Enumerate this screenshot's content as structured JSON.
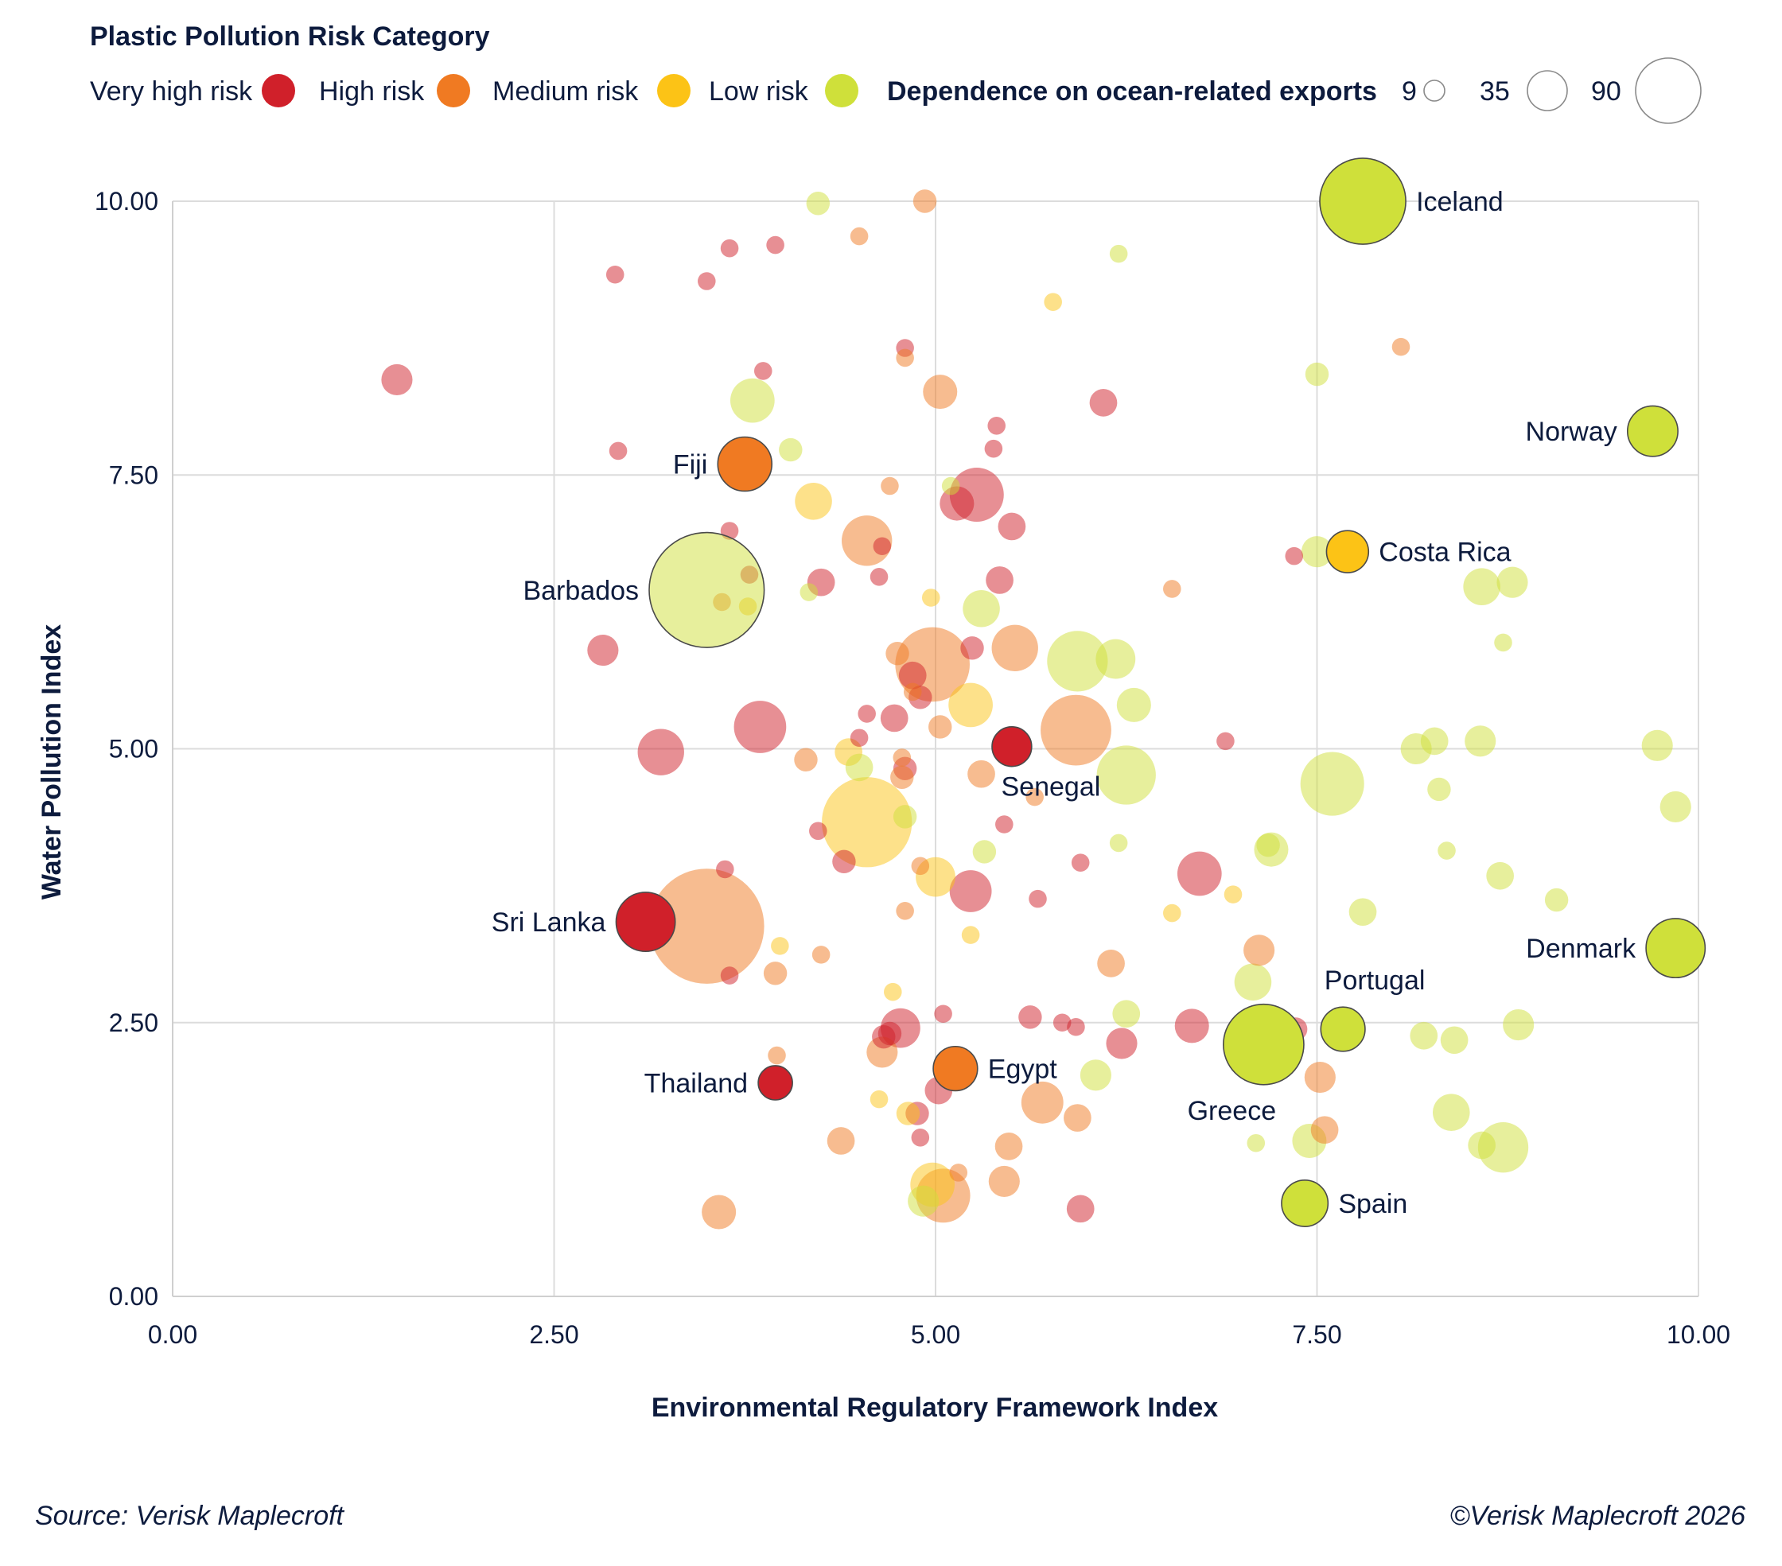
{
  "chart_data": {
    "type": "scatter",
    "legend": {
      "title": "Plastic Pollution Risk Category",
      "categories": [
        {
          "key": "very_high",
          "label": "Very high risk",
          "color": "#d0202a"
        },
        {
          "key": "high",
          "label": "High risk",
          "color": "#f07a22"
        },
        {
          "key": "medium",
          "label": "Medium risk",
          "color": "#fcc316"
        },
        {
          "key": "low",
          "label": "Low risk",
          "color": "#cfe03a"
        }
      ],
      "size_title": "Dependence on ocean-related exports",
      "size_values": [
        9,
        35,
        90
      ],
      "size_labels": [
        "9",
        "35",
        "90"
      ],
      "placement": "top"
    },
    "xlabel": "Environmental Regulatory Framework Index",
    "ylabel": "Water Pollution Index",
    "xlim": [
      0,
      10
    ],
    "ylim": [
      0,
      10
    ],
    "xticks": [
      "0.00",
      "2.50",
      "5.00",
      "7.50",
      "10.00"
    ],
    "yticks": [
      "0.00",
      "2.50",
      "5.00",
      "7.50",
      "10.00"
    ],
    "grid": true,
    "highlighted": [
      {
        "label": "Iceland",
        "x": 7.8,
        "y": 10.0,
        "size": 38,
        "category": "low",
        "label_pos": "right"
      },
      {
        "label": "Norway",
        "x": 9.7,
        "y": 7.9,
        "size": 12,
        "category": "low",
        "label_pos": "left"
      },
      {
        "label": "Costa Rica",
        "x": 7.7,
        "y": 6.8,
        "size": 8,
        "category": "medium",
        "label_pos": "right"
      },
      {
        "label": "Fiji",
        "x": 3.75,
        "y": 7.6,
        "size": 14,
        "category": "high",
        "label_pos": "left"
      },
      {
        "label": "Barbados",
        "x": 3.5,
        "y": 6.45,
        "size": 70,
        "category": "low",
        "label_pos": "left"
      },
      {
        "label": "Senegal",
        "x": 5.5,
        "y": 5.02,
        "size": 7,
        "category": "very_high",
        "label_pos": "below"
      },
      {
        "label": "Sri Lanka",
        "x": 3.1,
        "y": 3.42,
        "size": 17,
        "category": "very_high",
        "label_pos": "left"
      },
      {
        "label": "Thailand",
        "x": 3.95,
        "y": 1.95,
        "size": 5,
        "category": "very_high",
        "label_pos": "left"
      },
      {
        "label": "Egypt",
        "x": 5.13,
        "y": 2.08,
        "size": 9,
        "category": "high",
        "label_pos": "right"
      },
      {
        "label": "Denmark",
        "x": 9.85,
        "y": 3.18,
        "size": 17,
        "category": "low",
        "label_pos": "left"
      },
      {
        "label": "Portugal",
        "x": 7.67,
        "y": 2.44,
        "size": 9,
        "category": "low",
        "label_pos": "above"
      },
      {
        "label": "Greece",
        "x": 7.15,
        "y": 2.3,
        "size": 33,
        "category": "low",
        "label_pos": "below"
      },
      {
        "label": "Spain",
        "x": 7.42,
        "y": 0.85,
        "size": 10,
        "category": "low",
        "label_pos": "right"
      }
    ],
    "series": [
      {
        "name": "Very high risk",
        "category": "very_high",
        "points": [
          {
            "x": 1.47,
            "y": 8.37,
            "size": 4
          },
          {
            "x": 2.9,
            "y": 9.33,
            "size": 1
          },
          {
            "x": 3.5,
            "y": 9.27,
            "size": 1
          },
          {
            "x": 3.65,
            "y": 9.57,
            "size": 1
          },
          {
            "x": 3.95,
            "y": 9.6,
            "size": 1
          },
          {
            "x": 2.92,
            "y": 7.72,
            "size": 1
          },
          {
            "x": 3.87,
            "y": 8.45,
            "size": 1
          },
          {
            "x": 4.8,
            "y": 8.66,
            "size": 1
          },
          {
            "x": 5.4,
            "y": 7.95,
            "size": 1
          },
          {
            "x": 6.1,
            "y": 8.16,
            "size": 3
          },
          {
            "x": 5.38,
            "y": 7.74,
            "size": 1
          },
          {
            "x": 5.27,
            "y": 7.32,
            "size": 14
          },
          {
            "x": 5.14,
            "y": 7.24,
            "size": 5
          },
          {
            "x": 5.5,
            "y": 7.03,
            "size": 3
          },
          {
            "x": 3.65,
            "y": 6.99,
            "size": 1
          },
          {
            "x": 4.65,
            "y": 6.85,
            "size": 1
          },
          {
            "x": 3.78,
            "y": 6.59,
            "size": 1
          },
          {
            "x": 4.25,
            "y": 6.52,
            "size": 3
          },
          {
            "x": 4.63,
            "y": 6.57,
            "size": 1
          },
          {
            "x": 5.42,
            "y": 6.54,
            "size": 3
          },
          {
            "x": 7.35,
            "y": 6.76,
            "size": 1
          },
          {
            "x": 2.82,
            "y": 5.9,
            "size": 4
          },
          {
            "x": 4.85,
            "y": 5.67,
            "size": 3
          },
          {
            "x": 5.24,
            "y": 5.92,
            "size": 2
          },
          {
            "x": 4.9,
            "y": 5.47,
            "size": 2
          },
          {
            "x": 3.85,
            "y": 5.2,
            "size": 13
          },
          {
            "x": 3.2,
            "y": 4.97,
            "size": 10
          },
          {
            "x": 4.55,
            "y": 5.32,
            "size": 1
          },
          {
            "x": 4.73,
            "y": 5.28,
            "size": 3
          },
          {
            "x": 4.5,
            "y": 5.1,
            "size": 1
          },
          {
            "x": 4.8,
            "y": 4.82,
            "size": 2
          },
          {
            "x": 6.9,
            "y": 5.07,
            "size": 1
          },
          {
            "x": 5.45,
            "y": 4.31,
            "size": 1
          },
          {
            "x": 4.23,
            "y": 4.25,
            "size": 1
          },
          {
            "x": 3.62,
            "y": 3.9,
            "size": 1
          },
          {
            "x": 4.4,
            "y": 3.97,
            "size": 2
          },
          {
            "x": 5.95,
            "y": 3.96,
            "size": 1
          },
          {
            "x": 6.73,
            "y": 3.86,
            "size": 9
          },
          {
            "x": 5.23,
            "y": 3.7,
            "size": 8
          },
          {
            "x": 5.67,
            "y": 3.63,
            "size": 1
          },
          {
            "x": 3.65,
            "y": 2.93,
            "size": 1
          },
          {
            "x": 5.05,
            "y": 2.58,
            "size": 1
          },
          {
            "x": 5.62,
            "y": 2.55,
            "size": 2
          },
          {
            "x": 5.83,
            "y": 2.5,
            "size": 1
          },
          {
            "x": 5.92,
            "y": 2.46,
            "size": 1
          },
          {
            "x": 4.77,
            "y": 2.45,
            "size": 7
          },
          {
            "x": 4.66,
            "y": 2.37,
            "size": 2
          },
          {
            "x": 4.7,
            "y": 2.4,
            "size": 2
          },
          {
            "x": 6.22,
            "y": 2.31,
            "size": 4
          },
          {
            "x": 6.68,
            "y": 2.47,
            "size": 5
          },
          {
            "x": 7.36,
            "y": 2.44,
            "size": 2
          },
          {
            "x": 5.02,
            "y": 1.88,
            "size": 3
          },
          {
            "x": 4.88,
            "y": 1.67,
            "size": 2
          },
          {
            "x": 4.9,
            "y": 1.45,
            "size": 1
          },
          {
            "x": 5.95,
            "y": 0.8,
            "size": 3
          }
        ]
      },
      {
        "name": "High risk",
        "category": "high",
        "points": [
          {
            "x": 4.93,
            "y": 10.0,
            "size": 2
          },
          {
            "x": 4.5,
            "y": 9.68,
            "size": 1
          },
          {
            "x": 4.8,
            "y": 8.57,
            "size": 1
          },
          {
            "x": 5.03,
            "y": 8.26,
            "size": 5
          },
          {
            "x": 8.05,
            "y": 8.67,
            "size": 1
          },
          {
            "x": 4.7,
            "y": 7.4,
            "size": 1
          },
          {
            "x": 4.55,
            "y": 6.9,
            "size": 12
          },
          {
            "x": 3.6,
            "y": 6.34,
            "size": 1
          },
          {
            "x": 6.55,
            "y": 6.46,
            "size": 1
          },
          {
            "x": 4.98,
            "y": 5.77,
            "size": 28
          },
          {
            "x": 5.52,
            "y": 5.92,
            "size": 10
          },
          {
            "x": 4.75,
            "y": 5.87,
            "size": 2
          },
          {
            "x": 4.85,
            "y": 5.52,
            "size": 1
          },
          {
            "x": 5.92,
            "y": 5.17,
            "size": 25
          },
          {
            "x": 5.03,
            "y": 5.2,
            "size": 2
          },
          {
            "x": 4.15,
            "y": 4.9,
            "size": 2
          },
          {
            "x": 4.78,
            "y": 4.92,
            "size": 1
          },
          {
            "x": 4.78,
            "y": 4.74,
            "size": 2
          },
          {
            "x": 5.3,
            "y": 4.77,
            "size": 3
          },
          {
            "x": 5.65,
            "y": 4.56,
            "size": 1
          },
          {
            "x": 3.5,
            "y": 3.38,
            "size": 70
          },
          {
            "x": 4.9,
            "y": 3.93,
            "size": 1
          },
          {
            "x": 4.8,
            "y": 3.52,
            "size": 1
          },
          {
            "x": 4.25,
            "y": 3.12,
            "size": 1
          },
          {
            "x": 3.95,
            "y": 2.95,
            "size": 2
          },
          {
            "x": 6.15,
            "y": 3.04,
            "size": 3
          },
          {
            "x": 7.12,
            "y": 3.16,
            "size": 4
          },
          {
            "x": 3.96,
            "y": 2.2,
            "size": 1
          },
          {
            "x": 4.65,
            "y": 2.23,
            "size": 4
          },
          {
            "x": 7.52,
            "y": 2.0,
            "size": 4
          },
          {
            "x": 5.7,
            "y": 1.77,
            "size": 8
          },
          {
            "x": 5.93,
            "y": 1.63,
            "size": 3
          },
          {
            "x": 4.38,
            "y": 1.42,
            "size": 3
          },
          {
            "x": 5.48,
            "y": 1.37,
            "size": 3
          },
          {
            "x": 7.55,
            "y": 1.52,
            "size": 3
          },
          {
            "x": 5.15,
            "y": 1.13,
            "size": 1
          },
          {
            "x": 5.45,
            "y": 1.05,
            "size": 4
          },
          {
            "x": 5.05,
            "y": 0.92,
            "size": 14
          },
          {
            "x": 3.58,
            "y": 0.77,
            "size": 5
          }
        ]
      },
      {
        "name": "Medium risk",
        "category": "medium",
        "points": [
          {
            "x": 5.77,
            "y": 9.08,
            "size": 1
          },
          {
            "x": 4.2,
            "y": 7.26,
            "size": 6
          },
          {
            "x": 4.97,
            "y": 6.38,
            "size": 1
          },
          {
            "x": 3.77,
            "y": 6.3,
            "size": 1
          },
          {
            "x": 5.23,
            "y": 5.4,
            "size": 9
          },
          {
            "x": 4.43,
            "y": 4.97,
            "size": 3
          },
          {
            "x": 4.55,
            "y": 4.33,
            "size": 42
          },
          {
            "x": 5.0,
            "y": 3.83,
            "size": 7
          },
          {
            "x": 6.95,
            "y": 3.67,
            "size": 1
          },
          {
            "x": 6.55,
            "y": 3.5,
            "size": 1
          },
          {
            "x": 3.98,
            "y": 3.2,
            "size": 1
          },
          {
            "x": 5.23,
            "y": 3.3,
            "size": 1
          },
          {
            "x": 4.72,
            "y": 2.78,
            "size": 1
          },
          {
            "x": 4.63,
            "y": 1.8,
            "size": 1
          },
          {
            "x": 4.82,
            "y": 1.67,
            "size": 2
          },
          {
            "x": 4.98,
            "y": 1.02,
            "size": 9
          }
        ]
      },
      {
        "name": "Low risk",
        "category": "low",
        "points": [
          {
            "x": 4.23,
            "y": 9.98,
            "size": 2
          },
          {
            "x": 6.2,
            "y": 9.52,
            "size": 1
          },
          {
            "x": 7.5,
            "y": 8.42,
            "size": 2
          },
          {
            "x": 3.8,
            "y": 8.18,
            "size": 9
          },
          {
            "x": 4.05,
            "y": 7.73,
            "size": 2
          },
          {
            "x": 5.1,
            "y": 7.4,
            "size": 1
          },
          {
            "x": 7.5,
            "y": 6.8,
            "size": 4
          },
          {
            "x": 4.17,
            "y": 6.43,
            "size": 1
          },
          {
            "x": 5.3,
            "y": 6.28,
            "size": 6
          },
          {
            "x": 8.58,
            "y": 6.48,
            "size": 6
          },
          {
            "x": 8.78,
            "y": 6.52,
            "size": 4
          },
          {
            "x": 5.93,
            "y": 5.8,
            "size": 18
          },
          {
            "x": 6.18,
            "y": 5.82,
            "size": 7
          },
          {
            "x": 8.72,
            "y": 5.97,
            "size": 1
          },
          {
            "x": 6.3,
            "y": 5.4,
            "size": 5
          },
          {
            "x": 8.15,
            "y": 5.0,
            "size": 4
          },
          {
            "x": 8.27,
            "y": 5.07,
            "size": 3
          },
          {
            "x": 8.57,
            "y": 5.07,
            "size": 4
          },
          {
            "x": 9.73,
            "y": 5.03,
            "size": 4
          },
          {
            "x": 4.5,
            "y": 4.83,
            "size": 3
          },
          {
            "x": 6.25,
            "y": 4.76,
            "size": 17
          },
          {
            "x": 7.6,
            "y": 4.68,
            "size": 20
          },
          {
            "x": 8.3,
            "y": 4.63,
            "size": 2
          },
          {
            "x": 9.85,
            "y": 4.47,
            "size": 4
          },
          {
            "x": 4.8,
            "y": 4.38,
            "size": 2
          },
          {
            "x": 5.32,
            "y": 4.06,
            "size": 2
          },
          {
            "x": 6.2,
            "y": 4.14,
            "size": 1
          },
          {
            "x": 7.2,
            "y": 4.08,
            "size": 5
          },
          {
            "x": 7.18,
            "y": 4.12,
            "size": 2
          },
          {
            "x": 8.35,
            "y": 4.07,
            "size": 1
          },
          {
            "x": 8.7,
            "y": 3.84,
            "size": 3
          },
          {
            "x": 9.07,
            "y": 3.62,
            "size": 2
          },
          {
            "x": 7.8,
            "y": 3.51,
            "size": 3
          },
          {
            "x": 7.08,
            "y": 2.87,
            "size": 6
          },
          {
            "x": 6.25,
            "y": 2.58,
            "size": 3
          },
          {
            "x": 8.82,
            "y": 2.48,
            "size": 4
          },
          {
            "x": 8.2,
            "y": 2.38,
            "size": 3
          },
          {
            "x": 8.4,
            "y": 2.34,
            "size": 3
          },
          {
            "x": 6.05,
            "y": 2.02,
            "size": 4
          },
          {
            "x": 8.38,
            "y": 1.68,
            "size": 6
          },
          {
            "x": 7.1,
            "y": 1.4,
            "size": 1
          },
          {
            "x": 7.45,
            "y": 1.42,
            "size": 5
          },
          {
            "x": 8.58,
            "y": 1.38,
            "size": 3
          },
          {
            "x": 8.72,
            "y": 1.36,
            "size": 12
          },
          {
            "x": 4.92,
            "y": 0.87,
            "size": 4
          }
        ]
      }
    ]
  },
  "footer": {
    "source": "Source: Verisk Maplecroft",
    "copyright": "©Verisk Maplecroft 2026"
  }
}
